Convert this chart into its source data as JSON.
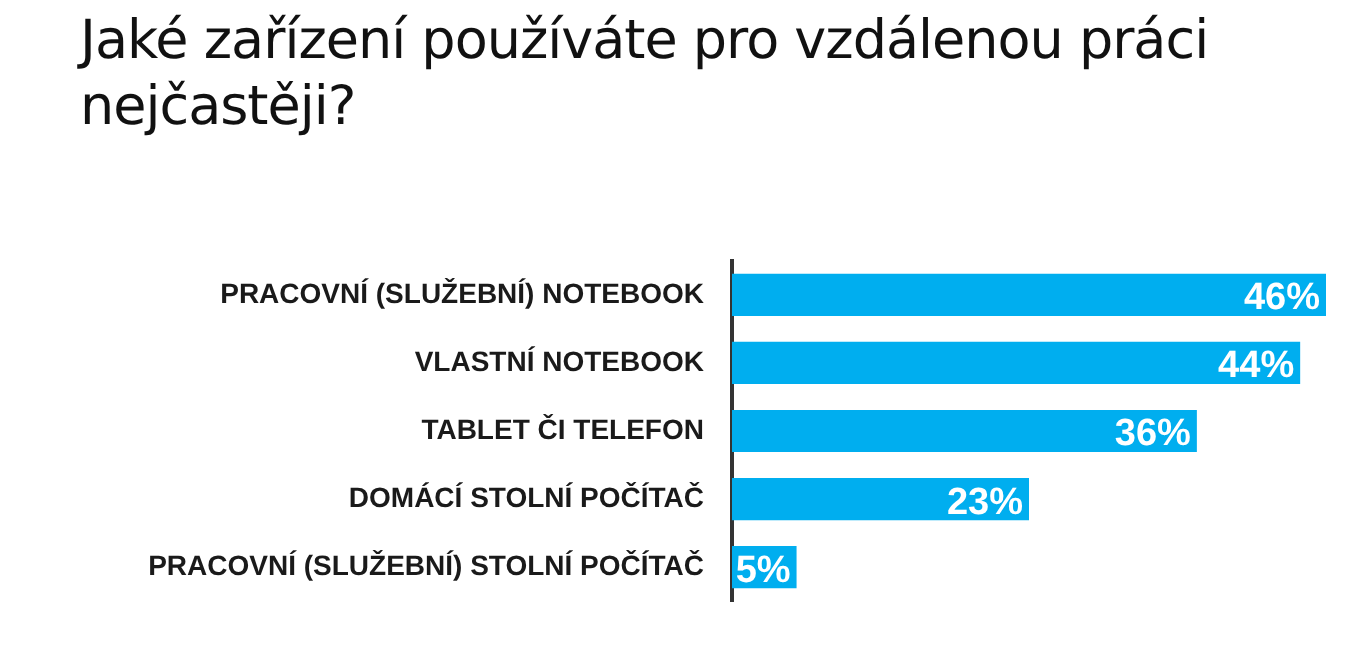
{
  "chart_data": {
    "type": "bar",
    "orientation": "horizontal",
    "title": "Jaké zařízení používáte pro vzdálenou práci nejčastěji?",
    "categories": [
      "PRACOVNÍ (SLUŽEBNÍ) NOTEBOOK",
      "VLASTNÍ NOTEBOOK",
      "TABLET ČI TELEFON",
      "DOMÁCÍ STOLNÍ POČÍTAČ",
      "PRACOVNÍ (SLUŽEBNÍ) STOLNÍ POČÍTAČ"
    ],
    "values": [
      46,
      44,
      36,
      23,
      5
    ],
    "value_labels": [
      "46%",
      "44%",
      "36%",
      "23%",
      "5%"
    ],
    "color": "#00aeef",
    "grid": false,
    "legend": false
  }
}
